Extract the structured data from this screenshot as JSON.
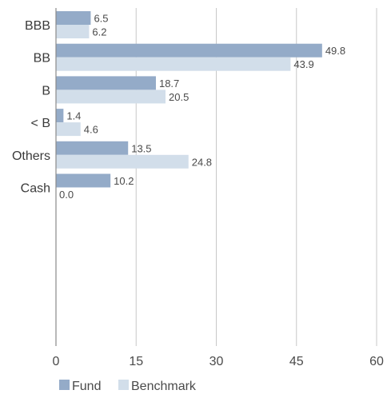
{
  "chart_data": {
    "type": "bar",
    "orientation": "horizontal",
    "categories": [
      "BBB",
      "BB",
      "B",
      "< B",
      "Others",
      "Cash"
    ],
    "series": [
      {
        "name": "Fund",
        "values": [
          6.5,
          49.8,
          18.7,
          1.4,
          13.5,
          10.2
        ],
        "color": "#94abc8"
      },
      {
        "name": "Benchmark",
        "values": [
          6.2,
          43.9,
          20.5,
          4.6,
          24.8,
          0.0
        ],
        "color": "#d2deea"
      }
    ],
    "data_labels": [
      [
        "6.5",
        "49.8",
        "18.7",
        "1.4",
        "13.5",
        "10.2"
      ],
      [
        "6.2",
        "43.9",
        "20.5",
        "4.6",
        "24.8",
        "0.0"
      ]
    ],
    "xlim": [
      0,
      60
    ],
    "xticks": [
      "0",
      "15",
      "30",
      "45",
      "60"
    ],
    "grid": "vertical",
    "legend_position": "bottom-left",
    "colors": {
      "gridline": "#c8c8c8",
      "axis": "#8a8a8a",
      "text": "#3a3a3a"
    }
  }
}
